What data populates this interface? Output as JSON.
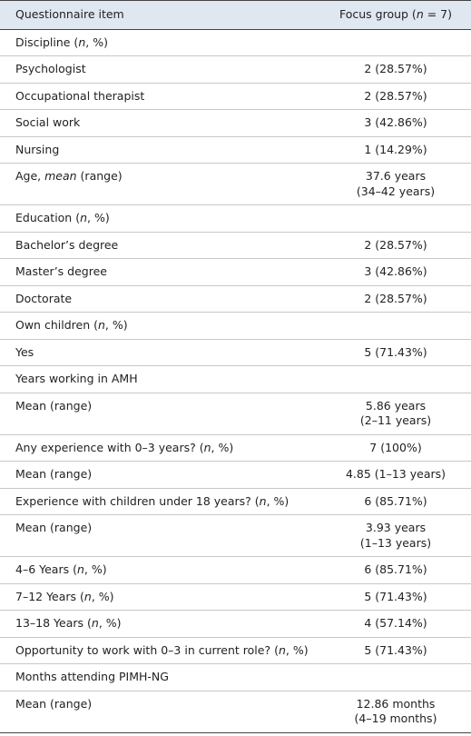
{
  "table": {
    "header": [
      [
        "Questionnaire item"
      ],
      [
        "Focus group (",
        "n",
        " = 7)"
      ]
    ],
    "rows": [
      {
        "item": [
          "Discipline (",
          "n",
          ", %)"
        ]
      },
      {
        "item": [
          "Psychologist"
        ],
        "value": [
          "2 (28.57%)"
        ]
      },
      {
        "item": [
          "Occupational therapist"
        ],
        "value": [
          "2 (28.57%)"
        ]
      },
      {
        "item": [
          "Social work"
        ],
        "value": [
          "3 (42.86%)"
        ]
      },
      {
        "item": [
          "Nursing"
        ],
        "value": [
          "1 (14.29%)"
        ]
      },
      {
        "item": [
          "Age, ",
          "mean",
          " (range)"
        ],
        "value": [
          "37.6 years",
          "(34–42 years)"
        ]
      },
      {
        "item": [
          "Education (",
          "n",
          ", %)"
        ]
      },
      {
        "item": [
          "Bachelor’s degree"
        ],
        "value": [
          "2 (28.57%)"
        ]
      },
      {
        "item": [
          "Master’s degree"
        ],
        "value": [
          "3 (42.86%)"
        ]
      },
      {
        "item": [
          "Doctorate"
        ],
        "value": [
          "2 (28.57%)"
        ]
      },
      {
        "item": [
          "Own children (",
          "n",
          ", %)"
        ]
      },
      {
        "item": [
          "Yes"
        ],
        "value": [
          "5 (71.43%)"
        ]
      },
      {
        "item": [
          "Years working in AMH"
        ]
      },
      {
        "item": [
          "Mean (range)"
        ],
        "value": [
          "5.86 years",
          "(2–11 years)"
        ]
      },
      {
        "item": [
          "Any experience with 0–3 years? (",
          "n",
          ", %)"
        ],
        "value": [
          "7 (100%)"
        ]
      },
      {
        "item": [
          "Mean (range)"
        ],
        "value": [
          "4.85 (1–13 years)"
        ]
      },
      {
        "item": [
          "Experience with children under 18 years? (",
          "n",
          ", %)"
        ],
        "value": [
          "6 (85.71%)"
        ]
      },
      {
        "item": [
          "Mean (range)"
        ],
        "value": [
          "3.93 years",
          "(1–13 years)"
        ]
      },
      {
        "item": [
          "4–6 Years (",
          "n",
          ", %)"
        ],
        "value": [
          "6 (85.71%)"
        ]
      },
      {
        "item": [
          "7–12 Years (",
          "n",
          ", %)"
        ],
        "value": [
          "5 (71.43%)"
        ]
      },
      {
        "item": [
          "13–18 Years (",
          "n",
          ", %)"
        ],
        "value": [
          "4 (57.14%)"
        ]
      },
      {
        "item": [
          "Opportunity to work with 0–3 in current role? (",
          "n",
          ", %)"
        ],
        "value": [
          "5 (71.43%)"
        ]
      },
      {
        "item": [
          "Months attending PIMH-NG"
        ]
      },
      {
        "item": [
          "Mean (range)"
        ],
        "value": [
          "12.86 months",
          "(4–19 months)"
        ]
      }
    ]
  }
}
